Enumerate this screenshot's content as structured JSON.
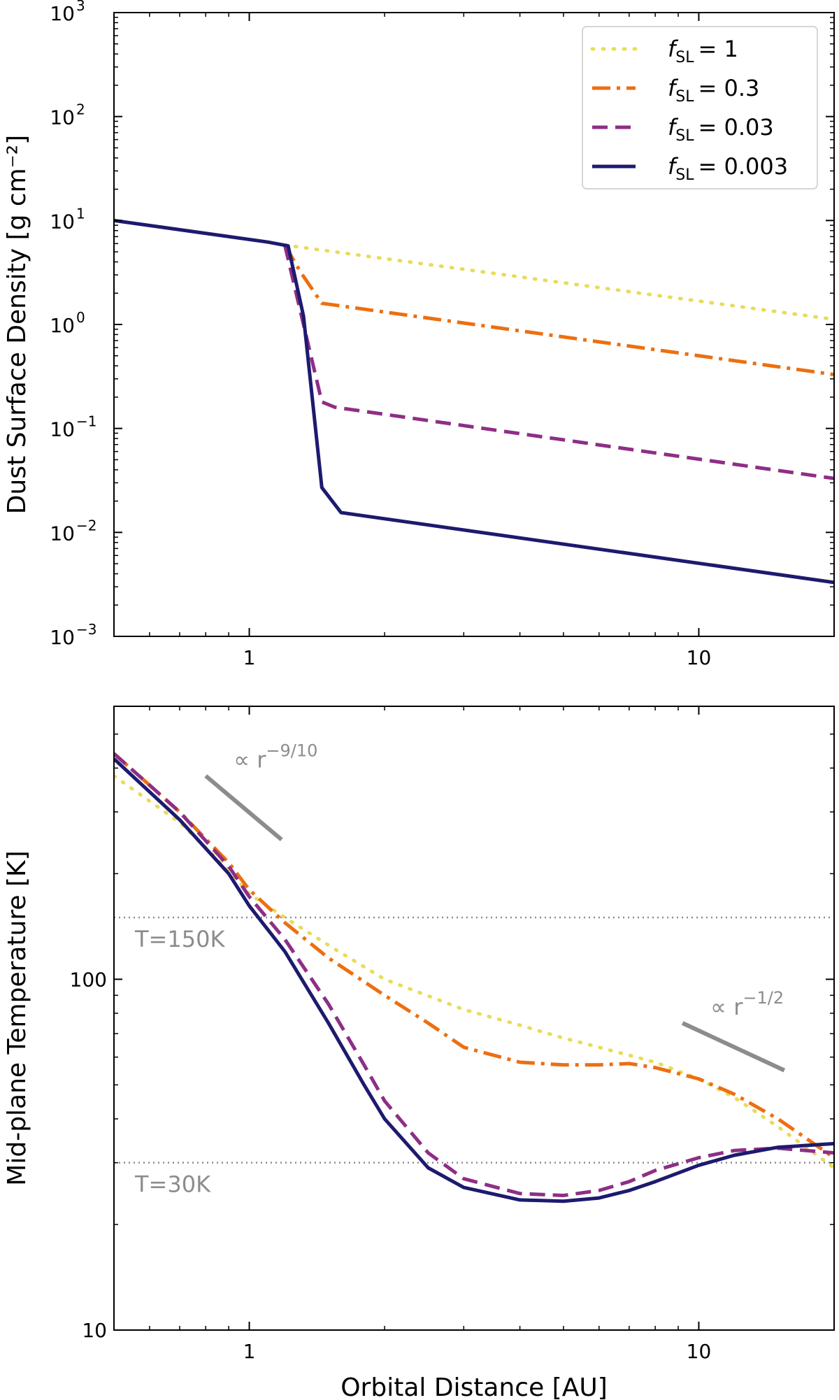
{
  "chart_data": [
    {
      "type": "line",
      "title": "",
      "xlabel": "",
      "ylabel": "Dust Surface Density [g cm⁻²]",
      "xscale": "log",
      "yscale": "log",
      "xlim": [
        0.5,
        20
      ],
      "ylim": [
        0.001,
        1000
      ],
      "x_ticks": [
        {
          "value": 1,
          "label": "1"
        },
        {
          "value": 10,
          "label": "10"
        }
      ],
      "y_ticks": [
        {
          "value": 0.001,
          "base": "10",
          "exp": "−3"
        },
        {
          "value": 0.01,
          "base": "10",
          "exp": "−2"
        },
        {
          "value": 0.1,
          "base": "10",
          "exp": "−1"
        },
        {
          "value": 1,
          "base": "10",
          "exp": "0"
        },
        {
          "value": 10,
          "base": "10",
          "exp": "1"
        },
        {
          "value": 100,
          "base": "10",
          "exp": "2"
        },
        {
          "value": 1000,
          "base": "10",
          "exp": "3"
        }
      ],
      "legend": {
        "position": "top-right",
        "entries": [
          {
            "symbol": "f",
            "sub": "SL",
            "value": "= 1"
          },
          {
            "symbol": "f",
            "sub": "SL",
            "value": "= 0.3"
          },
          {
            "symbol": "f",
            "sub": "SL",
            "value": "= 0.03"
          },
          {
            "symbol": "f",
            "sub": "SL",
            "value": "= 0.003"
          }
        ]
      },
      "series": [
        {
          "name": "fSL = 1",
          "color": "#e8dc5a",
          "dash": "dotted",
          "x": [
            1.2,
            20
          ],
          "y": [
            5.8,
            1.12
          ]
        },
        {
          "name": "fSL = 0.3",
          "color": "#ec6f11",
          "dash": "dashdot",
          "x": [
            1.2,
            1.3,
            1.45,
            20
          ],
          "y": [
            5.8,
            3.2,
            1.6,
            0.33
          ]
        },
        {
          "name": "fSL = 0.03",
          "color": "#8e2e86",
          "dash": "dashed",
          "x": [
            1.2,
            1.32,
            1.45,
            1.55,
            20
          ],
          "y": [
            5.8,
            1.0,
            0.18,
            0.16,
            0.033
          ]
        },
        {
          "name": "fSL = 0.003",
          "color": "#1d1a6f",
          "dash": "solid",
          "x": [
            0.5,
            1.1,
            1.22,
            1.32,
            1.45,
            1.6,
            20
          ],
          "y": [
            10,
            6.2,
            5.7,
            1.2,
            0.027,
            0.0155,
            0.0033
          ]
        }
      ]
    },
    {
      "type": "line",
      "title": "",
      "xlabel": "Orbital Distance [AU]",
      "ylabel": "Mid-plane Temperature [K]",
      "xscale": "log",
      "yscale": "log",
      "xlim": [
        0.5,
        20
      ],
      "ylim": [
        10,
        600
      ],
      "x_ticks": [
        {
          "value": 1,
          "label": "1"
        },
        {
          "value": 10,
          "label": "10"
        }
      ],
      "y_ticks": [
        {
          "value": 10,
          "label": "10"
        },
        {
          "value": 100,
          "label": "100"
        }
      ],
      "reference_lines": [
        {
          "y": 150,
          "label": "T=150K"
        },
        {
          "y": 30,
          "label": "T=30K"
        }
      ],
      "slope_annotations": [
        {
          "label_prefix": "∝ r",
          "exponent": "−9/10",
          "x": [
            0.8,
            1.18
          ],
          "y": [
            380,
            250
          ]
        },
        {
          "label_prefix": "∝ r",
          "exponent": "−1/2",
          "x": [
            9.2,
            15.5
          ],
          "y": [
            75,
            55
          ]
        }
      ],
      "series": [
        {
          "name": "fSL = 1",
          "color": "#e8dc5a",
          "dash": "dotted",
          "x": [
            0.5,
            0.7,
            0.9,
            1.0,
            1.2,
            1.5,
            2.0,
            3.0,
            4.0,
            5.0,
            6.0,
            8.0,
            10.0,
            12.0,
            15.0,
            18.0,
            20.0
          ],
          "y": [
            380,
            280,
            205,
            175,
            150,
            125,
            100,
            82,
            74,
            68,
            64,
            58,
            52,
            46,
            38,
            32,
            29
          ]
        },
        {
          "name": "fSL = 0.3",
          "color": "#ec6f11",
          "dash": "dashdot",
          "x": [
            0.5,
            0.7,
            0.9,
            1.0,
            1.2,
            1.5,
            2.0,
            2.5,
            3.0,
            4.0,
            5.0,
            6.0,
            7.0,
            8.0,
            10.0,
            12.0,
            15.0,
            20.0
          ],
          "y": [
            440,
            300,
            215,
            180,
            145,
            115,
            90,
            75,
            64,
            58,
            57,
            57,
            57.5,
            56,
            52,
            47,
            40,
            31
          ]
        },
        {
          "name": "fSL = 0.03",
          "color": "#8e2e86",
          "dash": "dashed",
          "x": [
            0.5,
            0.7,
            0.9,
            1.0,
            1.2,
            1.5,
            1.8,
            2.0,
            2.5,
            3.0,
            4.0,
            5.0,
            6.0,
            7.0,
            8.0,
            10.0,
            12.0,
            15.0,
            20.0
          ],
          "y": [
            440,
            300,
            210,
            172,
            130,
            85,
            57,
            45,
            32,
            27,
            24.5,
            24.2,
            25,
            26.5,
            28.5,
            31,
            32.5,
            33,
            32
          ]
        },
        {
          "name": "fSL = 0.003",
          "color": "#1d1a6f",
          "dash": "solid",
          "x": [
            0.5,
            0.7,
            0.9,
            1.0,
            1.2,
            1.5,
            1.8,
            2.0,
            2.5,
            3.0,
            4.0,
            5.0,
            6.0,
            7.0,
            8.0,
            10.0,
            12.0,
            15.0,
            20.0
          ],
          "y": [
            425,
            285,
            200,
            162,
            120,
            75,
            50,
            40,
            29,
            25.5,
            23.5,
            23.3,
            23.8,
            25,
            26.5,
            29.5,
            31.5,
            33.2,
            34
          ]
        }
      ]
    }
  ]
}
